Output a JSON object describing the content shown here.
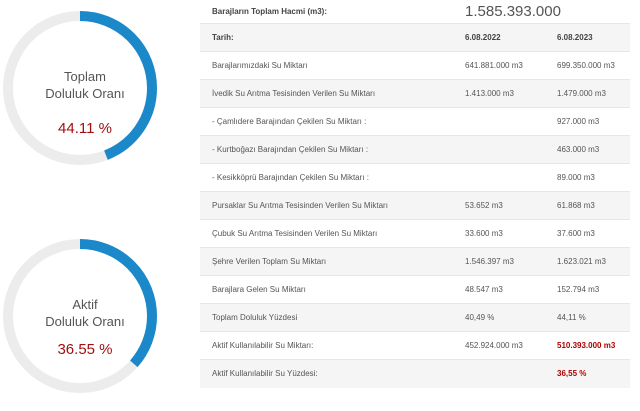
{
  "gauges": [
    {
      "label_line1": "Toplam",
      "label_line2": "Doluluk Oranı",
      "value_text": "44.11 %",
      "fraction": 0.4411,
      "color": "#1a88c9",
      "track_color": "#ececec"
    },
    {
      "label_line1": "Aktif",
      "label_line2": "Doluluk Oranı",
      "value_text": "36.55 %",
      "fraction": 0.3655,
      "color": "#1a88c9",
      "track_color": "#ececec"
    }
  ],
  "table": {
    "total_label": "Barajların Toplam Hacmi (m3):",
    "total_value": "1.585.393.000",
    "date_label": "Tarih:",
    "date_1": "6.08.2022",
    "date_2": "6.08.2023",
    "rows": [
      {
        "label": "Barajlarımızdaki Su Miktarı",
        "v1": "641.881.000 m3",
        "v2": "699.350.000 m3"
      },
      {
        "label": "İvedik Su Arıtma Tesisinden Verilen Su Miktarı",
        "v1": "1.413.000 m3",
        "v2": "1.479.000 m3"
      },
      {
        "label": "- Çamlıdere Barajından Çekilen Su Miktarı :",
        "v1": "",
        "v2": "927.000 m3"
      },
      {
        "label": "- Kurtboğazı Barajından Çekilen Su Miktarı :",
        "v1": "",
        "v2": "463.000 m3"
      },
      {
        "label": "- Kesikköprü Barajından Çekilen Su Miktarı :",
        "v1": "",
        "v2": "89.000 m3"
      },
      {
        "label": "Pursaklar Su Arıtma Tesisinden Verilen Su Miktarı",
        "v1": "53.652 m3",
        "v2": "61.868 m3"
      },
      {
        "label": "Çubuk Su Arıtma Tesisinden Verilen Su Miktarı",
        "v1": "33.600 m3",
        "v2": "37.600 m3"
      },
      {
        "label": "Şehre Verilen Toplam Su Miktarı",
        "v1": "1.546.397 m3",
        "v2": "1.623.021 m3"
      },
      {
        "label": "Barajlara Gelen Su Miktarı",
        "v1": "48.547 m3",
        "v2": "152.794 m3"
      },
      {
        "label": "Toplam Doluluk Yüzdesi",
        "v1": "40,49 %",
        "v2": "44,11 %"
      },
      {
        "label": "Aktif Kullanılabilir Su Miktarı:",
        "v1": "452.924.000 m3",
        "v2": "510.393.000 m3"
      },
      {
        "label": "Aktif Kullanılabilir Su Yüzdesi:",
        "v1": "",
        "v2": "36,55 %"
      }
    ]
  },
  "colors": {
    "highlight": "#b00000",
    "row_alt": "#f5f5f5",
    "border": "#e6e6e6"
  }
}
